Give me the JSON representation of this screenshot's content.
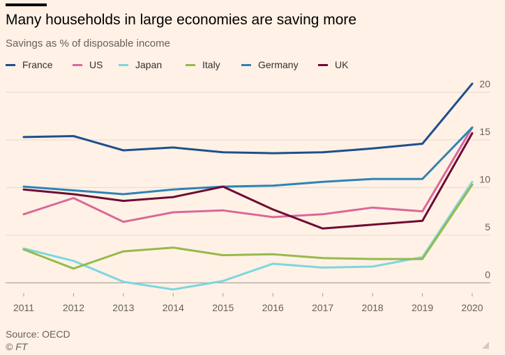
{
  "header": {
    "title": "Many households in large economies are saving more",
    "subtitle": "Savings as % of disposable income"
  },
  "footer": {
    "source": "Source: OECD",
    "copyright": "© FT"
  },
  "chart_data": {
    "type": "line",
    "title": "Many households in large economies are saving more",
    "subtitle": "Savings as % of disposable income",
    "xlabel": "",
    "ylabel": "",
    "x": [
      2011,
      2012,
      2013,
      2014,
      2015,
      2016,
      2017,
      2018,
      2019,
      2020
    ],
    "x_tick_labels": [
      "2011",
      "2012",
      "2013",
      "2014",
      "2015",
      "2016",
      "2017",
      "2018",
      "2019",
      "2020"
    ],
    "y_ticks": [
      0,
      5,
      10,
      15,
      20
    ],
    "y_tick_labels": [
      "0",
      "5",
      "10",
      "15",
      "20"
    ],
    "ylim": [
      -1,
      21.5
    ],
    "grid": true,
    "y_axis_side": "right",
    "legend_position": "top",
    "series": [
      {
        "name": "France",
        "color": "#1e4f8c",
        "values": [
          15.3,
          15.4,
          13.9,
          14.2,
          13.7,
          13.6,
          13.7,
          14.1,
          14.6,
          20.9
        ]
      },
      {
        "name": "US",
        "color": "#d9689a",
        "values": [
          7.2,
          8.9,
          6.4,
          7.4,
          7.6,
          6.9,
          7.2,
          7.9,
          7.5,
          16.3
        ]
      },
      {
        "name": "Japan",
        "color": "#7dd6e0",
        "values": [
          3.6,
          2.3,
          0.1,
          -0.7,
          0.2,
          2.0,
          1.6,
          1.7,
          2.7,
          10.6
        ]
      },
      {
        "name": "Italy",
        "color": "#96b94c",
        "values": [
          3.5,
          1.5,
          3.3,
          3.7,
          2.9,
          3.0,
          2.6,
          2.5,
          2.5,
          10.3
        ]
      },
      {
        "name": "Germany",
        "color": "#2d83b6",
        "values": [
          10.1,
          9.7,
          9.3,
          9.8,
          10.1,
          10.2,
          10.6,
          10.9,
          10.9,
          16.3
        ]
      },
      {
        "name": "UK",
        "color": "#6e0b33",
        "values": [
          9.8,
          9.3,
          8.6,
          9.0,
          10.1,
          7.7,
          5.7,
          6.1,
          6.5,
          15.7
        ]
      }
    ]
  }
}
